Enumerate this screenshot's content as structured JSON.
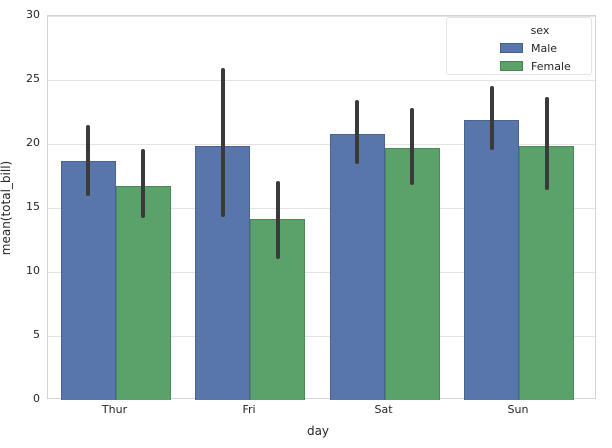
{
  "chart_data": {
    "type": "bar",
    "title": "",
    "xlabel": "day",
    "ylabel": "mean(total_bill)",
    "categories": [
      "Thur",
      "Fri",
      "Sat",
      "Sun"
    ],
    "series": [
      {
        "name": "Male",
        "color": "#5876aa",
        "values": [
          18.71,
          19.86,
          20.8,
          21.89
        ],
        "ci_low": [
          15.9,
          14.3,
          18.4,
          19.5
        ],
        "ci_high": [
          21.5,
          25.9,
          23.4,
          24.5
        ]
      },
      {
        "name": "Female",
        "color": "#5aa269",
        "values": [
          16.72,
          14.15,
          19.68,
          19.87
        ],
        "ci_low": [
          14.2,
          11.0,
          16.8,
          16.4
        ],
        "ci_high": [
          19.6,
          17.1,
          22.8,
          23.7
        ]
      }
    ],
    "legend_title": "sex",
    "legend_position": "upper right",
    "ylim": [
      0,
      30
    ],
    "yticks": [
      0,
      5,
      10,
      15,
      20,
      25,
      30
    ],
    "grid": true,
    "error_bar_color": "#3a3a3a"
  }
}
